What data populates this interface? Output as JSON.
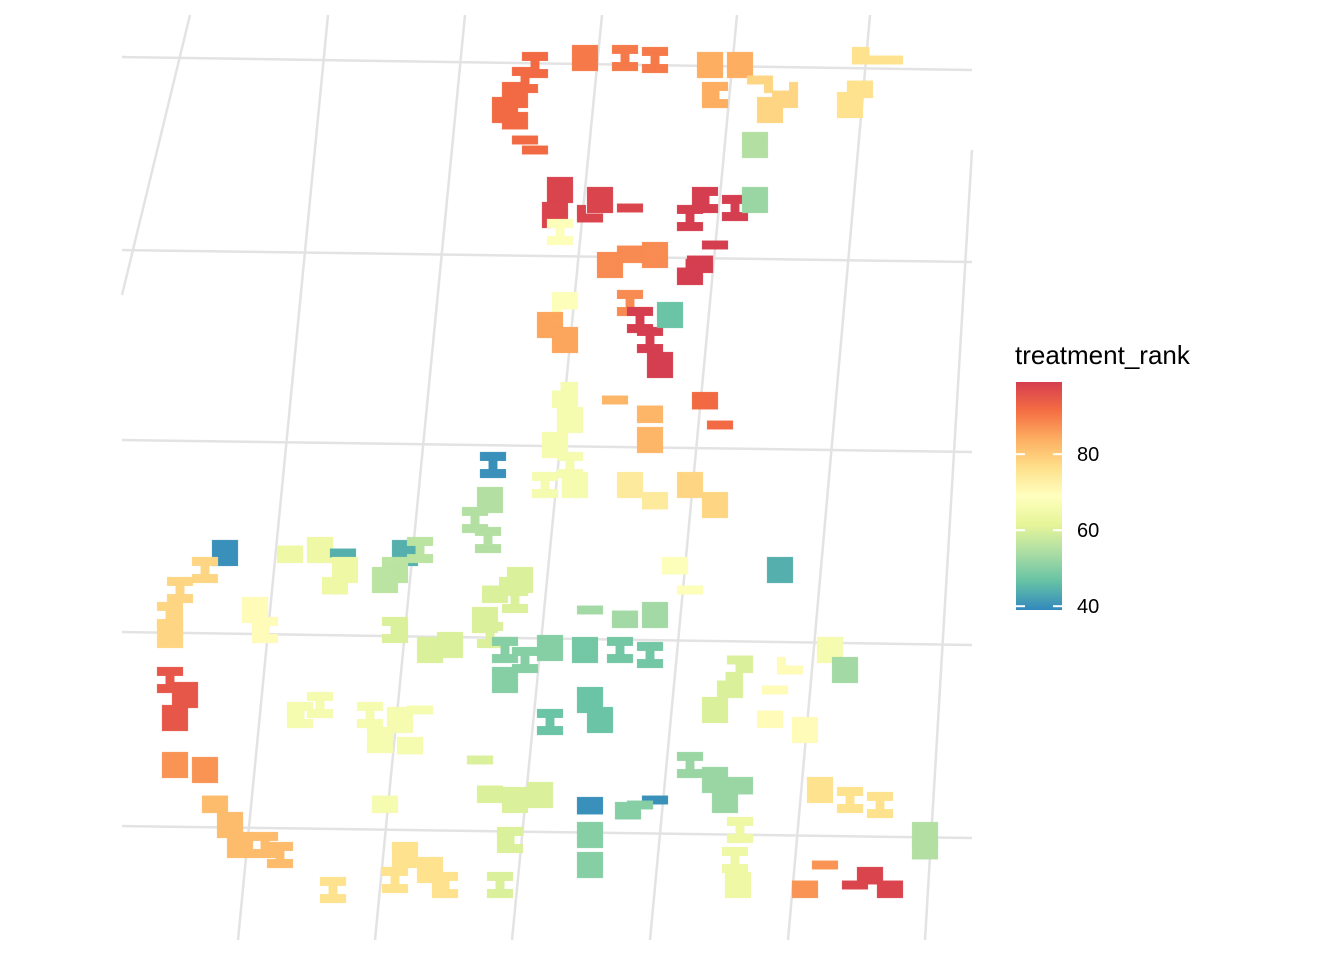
{
  "legend": {
    "title": "treatment_rank",
    "ticks": [
      {
        "label": "80",
        "value": 80
      },
      {
        "label": "60",
        "value": 60
      },
      {
        "label": "40",
        "value": 40
      }
    ],
    "value_min": 39,
    "value_max": 99,
    "palette": [
      "#3288bd",
      "#66c2a5",
      "#abdda4",
      "#e6f598",
      "#ffffbf",
      "#fee08b",
      "#fdae61",
      "#f46d43",
      "#d53e4f"
    ]
  },
  "map": {
    "background": "#ffffff",
    "graticule_color": "#e3e3e3",
    "regions": [
      {
        "value": 92,
        "cells": [
          [
            535,
            65
          ],
          [
            525,
            80
          ],
          [
            515,
            95
          ],
          [
            505,
            110
          ],
          [
            515,
            125
          ],
          [
            525,
            140
          ],
          [
            535,
            150
          ]
        ]
      },
      {
        "value": 90,
        "cells": [
          [
            585,
            58
          ],
          [
            625,
            58
          ],
          [
            655,
            60
          ]
        ]
      },
      {
        "value": 84,
        "cells": [
          [
            710,
            65
          ],
          [
            740,
            65
          ],
          [
            715,
            95
          ]
        ]
      },
      {
        "value": 78,
        "cells": [
          [
            760,
            80
          ],
          [
            785,
            95
          ],
          [
            770,
            110
          ]
        ]
      },
      {
        "value": 76,
        "cells": [
          [
            865,
            60
          ],
          [
            890,
            60
          ],
          [
            860,
            85
          ],
          [
            850,
            105
          ]
        ]
      },
      {
        "value": 55,
        "cells": [
          [
            755,
            145
          ]
        ]
      },
      {
        "value": 98,
        "cells": [
          [
            560,
            190
          ],
          [
            600,
            200
          ],
          [
            555,
            215
          ],
          [
            590,
            218
          ],
          [
            630,
            208
          ]
        ]
      },
      {
        "value": 68,
        "cells": [
          [
            560,
            232
          ]
        ]
      },
      {
        "value": 99,
        "cells": [
          [
            705,
            200
          ],
          [
            735,
            208
          ],
          [
            690,
            218
          ]
        ]
      },
      {
        "value": 52,
        "cells": [
          [
            755,
            200
          ]
        ]
      },
      {
        "value": 88,
        "cells": [
          [
            630,
            250
          ],
          [
            655,
            255
          ],
          [
            610,
            265
          ]
        ]
      },
      {
        "value": 99,
        "cells": [
          [
            715,
            245
          ],
          [
            700,
            260
          ],
          [
            690,
            272
          ]
        ]
      },
      {
        "value": 68,
        "cells": [
          [
            565,
            305
          ]
        ]
      },
      {
        "value": 85,
        "cells": [
          [
            550,
            325
          ],
          [
            565,
            340
          ]
        ]
      },
      {
        "value": 88,
        "cells": [
          [
            630,
            303
          ]
        ]
      },
      {
        "value": 99,
        "cells": [
          [
            640,
            320
          ],
          [
            650,
            340
          ],
          [
            660,
            365
          ]
        ]
      },
      {
        "value": 47,
        "cells": [
          [
            670,
            315
          ]
        ]
      },
      {
        "value": 66,
        "cells": [
          [
            565,
            395
          ],
          [
            570,
            420
          ],
          [
            555,
            445
          ],
          [
            570,
            465
          ],
          [
            545,
            485
          ],
          [
            575,
            485
          ]
        ]
      },
      {
        "value": 83,
        "cells": [
          [
            615,
            400
          ],
          [
            650,
            410
          ],
          [
            650,
            440
          ]
        ]
      },
      {
        "value": 92,
        "cells": [
          [
            705,
            405
          ],
          [
            720,
            425
          ]
        ]
      },
      {
        "value": 74,
        "cells": [
          [
            630,
            485
          ],
          [
            655,
            505
          ]
        ]
      },
      {
        "value": 78,
        "cells": [
          [
            690,
            485
          ],
          [
            715,
            505
          ]
        ]
      },
      {
        "value": 40,
        "cells": [
          [
            493,
            465
          ]
        ]
      },
      {
        "value": 55,
        "cells": [
          [
            490,
            500
          ],
          [
            488,
            540
          ],
          [
            475,
            520
          ]
        ]
      },
      {
        "value": 40,
        "cells": [
          [
            225,
            553
          ]
        ]
      },
      {
        "value": 64,
        "cells": [
          [
            290,
            550
          ],
          [
            320,
            550
          ]
        ]
      },
      {
        "value": 44,
        "cells": [
          [
            343,
            553
          ]
        ]
      },
      {
        "value": 64,
        "cells": [
          [
            345,
            570
          ],
          [
            335,
            590
          ]
        ]
      },
      {
        "value": 44,
        "cells": [
          [
            405,
            553
          ]
        ]
      },
      {
        "value": 56,
        "cells": [
          [
            420,
            550
          ],
          [
            395,
            570
          ],
          [
            385,
            580
          ]
        ]
      },
      {
        "value": 78,
        "cells": [
          [
            205,
            570
          ],
          [
            180,
            590
          ],
          [
            170,
            615
          ],
          [
            170,
            635
          ]
        ]
      },
      {
        "value": 70,
        "cells": [
          [
            255,
            610
          ],
          [
            265,
            630
          ]
        ]
      },
      {
        "value": 60,
        "cells": [
          [
            495,
            590
          ],
          [
            485,
            620
          ],
          [
            520,
            580
          ],
          [
            515,
            600
          ],
          [
            490,
            635
          ]
        ]
      },
      {
        "value": 53,
        "cells": [
          [
            590,
            610
          ],
          [
            625,
            615
          ],
          [
            655,
            615
          ]
        ]
      },
      {
        "value": 68,
        "cells": [
          [
            675,
            570
          ],
          [
            690,
            590
          ]
        ]
      },
      {
        "value": 44,
        "cells": [
          [
            780,
            570
          ]
        ]
      },
      {
        "value": 60,
        "cells": [
          [
            395,
            630
          ],
          [
            430,
            650
          ],
          [
            450,
            645
          ]
        ]
      },
      {
        "value": 50,
        "cells": [
          [
            505,
            650
          ],
          [
            525,
            660
          ],
          [
            505,
            680
          ],
          [
            550,
            648
          ]
        ]
      },
      {
        "value": 48,
        "cells": [
          [
            585,
            650
          ],
          [
            620,
            650
          ],
          [
            650,
            655
          ]
        ]
      },
      {
        "value": 47,
        "cells": [
          [
            590,
            700
          ],
          [
            600,
            720
          ],
          [
            550,
            722
          ]
        ]
      },
      {
        "value": 60,
        "cells": [
          [
            740,
            660
          ],
          [
            730,
            685
          ],
          [
            715,
            710
          ]
        ]
      },
      {
        "value": 70,
        "cells": [
          [
            790,
            670
          ],
          [
            775,
            690
          ],
          [
            770,
            715
          ],
          [
            805,
            730
          ]
        ]
      },
      {
        "value": 66,
        "cells": [
          [
            830,
            650
          ]
        ]
      },
      {
        "value": 53,
        "cells": [
          [
            845,
            670
          ]
        ]
      },
      {
        "value": 95,
        "cells": [
          [
            170,
            680
          ],
          [
            185,
            695
          ],
          [
            175,
            718
          ]
        ]
      },
      {
        "value": 66,
        "cells": [
          [
            300,
            715
          ],
          [
            320,
            705
          ],
          [
            370,
            715
          ],
          [
            400,
            720
          ],
          [
            380,
            740
          ],
          [
            410,
            750
          ],
          [
            420,
            710
          ],
          [
            385,
            800
          ]
        ]
      },
      {
        "value": 87,
        "cells": [
          [
            175,
            765
          ],
          [
            205,
            770
          ]
        ]
      },
      {
        "value": 82,
        "cells": [
          [
            215,
            800
          ],
          [
            230,
            825
          ],
          [
            240,
            845
          ],
          [
            265,
            845
          ],
          [
            280,
            855
          ]
        ]
      },
      {
        "value": 60,
        "cells": [
          [
            480,
            760
          ],
          [
            490,
            790
          ],
          [
            515,
            800
          ],
          [
            540,
            795
          ],
          [
            510,
            840
          ],
          [
            500,
            885
          ]
        ]
      },
      {
        "value": 40,
        "cells": [
          [
            590,
            810
          ],
          [
            655,
            800
          ]
        ]
      },
      {
        "value": 50,
        "cells": [
          [
            590,
            835
          ],
          [
            590,
            865
          ],
          [
            628,
            815
          ],
          [
            640,
            805
          ]
        ]
      },
      {
        "value": 52,
        "cells": [
          [
            690,
            765
          ],
          [
            715,
            780
          ],
          [
            725,
            800
          ],
          [
            740,
            790
          ]
        ]
      },
      {
        "value": 64,
        "cells": [
          [
            740,
            830
          ],
          [
            735,
            860
          ],
          [
            738,
            885
          ]
        ]
      },
      {
        "value": 76,
        "cells": [
          [
            820,
            790
          ],
          [
            850,
            800
          ],
          [
            880,
            805
          ]
        ]
      },
      {
        "value": 76,
        "cells": [
          [
            405,
            855
          ],
          [
            430,
            870
          ],
          [
            445,
            885
          ],
          [
            395,
            880
          ],
          [
            333,
            890
          ]
        ]
      },
      {
        "value": 87,
        "cells": [
          [
            825,
            865
          ],
          [
            805,
            885
          ]
        ]
      },
      {
        "value": 98,
        "cells": [
          [
            870,
            880
          ],
          [
            855,
            885
          ],
          [
            890,
            885
          ]
        ]
      },
      {
        "value": 55,
        "cells": [
          [
            925,
            835
          ],
          [
            925,
            855
          ]
        ]
      }
    ]
  }
}
